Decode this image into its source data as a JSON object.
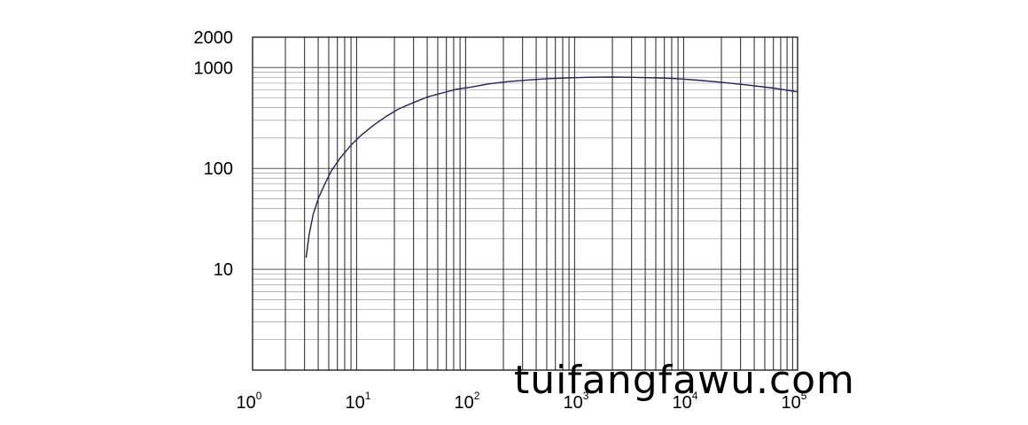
{
  "chart_data": {
    "type": "line",
    "xscale": "log",
    "yscale": "log",
    "xlim": [
      1,
      100000
    ],
    "ylim": [
      1,
      2000
    ],
    "grid": true,
    "x_tick_labels": [
      {
        "base": "10",
        "exp": "0",
        "value": 1
      },
      {
        "base": "10",
        "exp": "1",
        "value": 10
      },
      {
        "base": "10",
        "exp": "2",
        "value": 100
      },
      {
        "base": "10",
        "exp": "3",
        "value": 1000
      },
      {
        "base": "10",
        "exp": "4",
        "value": 10000
      },
      {
        "base": "10",
        "exp": "5",
        "value": 100000
      }
    ],
    "y_tick_labels": [
      {
        "text": "10",
        "value": 10
      },
      {
        "text": "100",
        "value": 100
      },
      {
        "text": "1000",
        "value": 1000
      },
      {
        "text": "2000",
        "value": 2000
      }
    ],
    "series": [
      {
        "color": "#1f1f6e",
        "x": [
          3.1,
          3.3,
          3.6,
          4.0,
          4.6,
          5.3,
          6.3,
          8.0,
          10,
          13,
          17,
          22,
          30,
          40,
          55,
          75,
          100,
          150,
          220,
          350,
          500,
          800,
          1200,
          2000,
          3000,
          5000,
          8000,
          12000,
          20000,
          35000,
          60000,
          100000
        ],
        "y": [
          13,
          22,
          35,
          50,
          70,
          95,
          125,
          170,
          215,
          270,
          330,
          390,
          450,
          510,
          560,
          610,
          640,
          690,
          725,
          755,
          775,
          790,
          800,
          805,
          800,
          790,
          775,
          750,
          715,
          670,
          625,
          575
        ]
      }
    ]
  },
  "watermark": "tuifangfawu.com"
}
